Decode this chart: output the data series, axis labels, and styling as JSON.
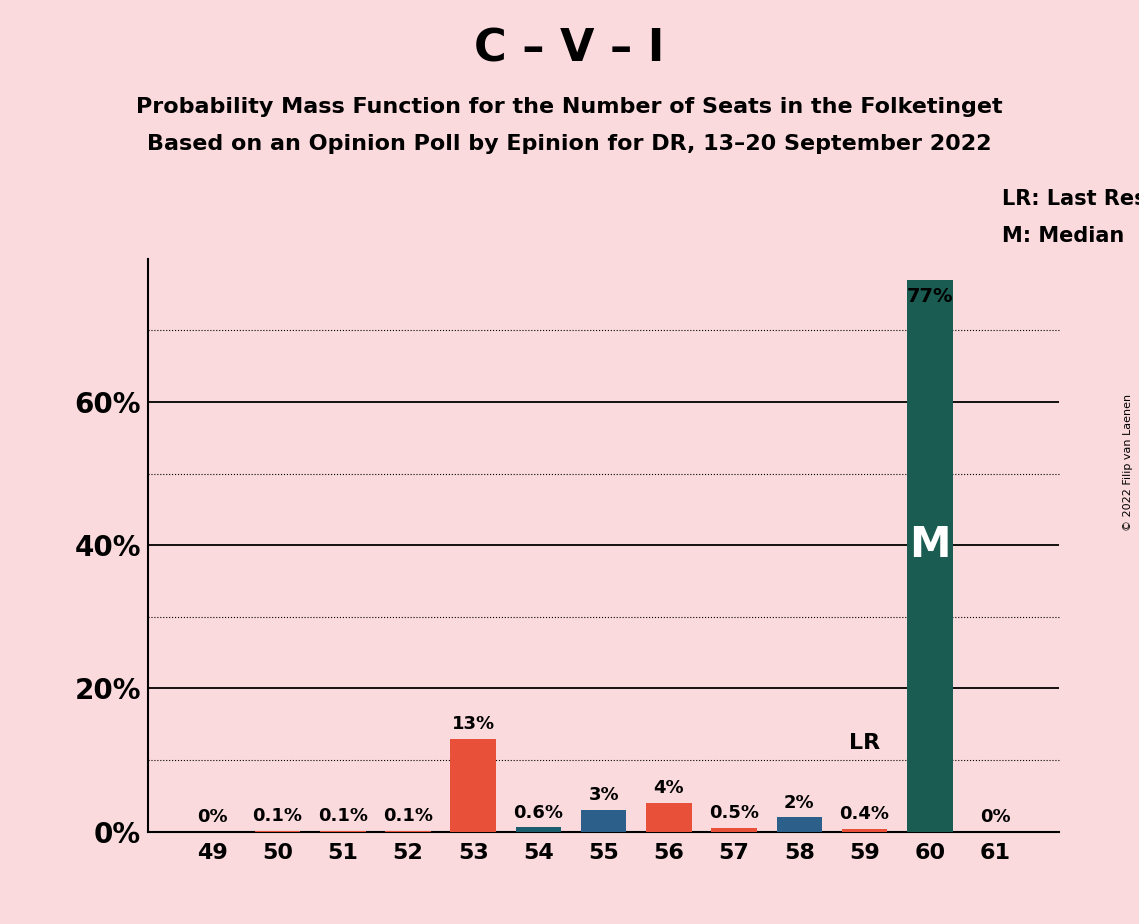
{
  "title": "C – V – I",
  "subtitle1": "Probability Mass Function for the Number of Seats in the Folketinget",
  "subtitle2": "Based on an Opinion Poll by Epinion for DR, 13–20 September 2022",
  "copyright": "© 2022 Filip van Laenen",
  "categories": [
    49,
    50,
    51,
    52,
    53,
    54,
    55,
    56,
    57,
    58,
    59,
    60,
    61
  ],
  "values": [
    0.0,
    0.1,
    0.1,
    0.1,
    13.0,
    0.6,
    3.0,
    4.0,
    0.5,
    2.0,
    0.4,
    77.0,
    0.0
  ],
  "labels": [
    "0%",
    "0.1%",
    "0.1%",
    "0.1%",
    "13%",
    "0.6%",
    "3%",
    "4%",
    "0.5%",
    "2%",
    "0.4%",
    "",
    "0%"
  ],
  "bar_colors": [
    "#E8503A",
    "#E8503A",
    "#E8503A",
    "#E8503A",
    "#E8503A",
    "#1B5E6E",
    "#2C5F8A",
    "#E8503A",
    "#E8503A",
    "#2C5F8A",
    "#E8503A",
    "#1A5C52",
    "#E8503A"
  ],
  "median_seat": 60,
  "last_result_seat": 60,
  "last_result_value": 77.0,
  "median_label": "M",
  "lr_label": "LR",
  "lr_legend": "LR: Last Result",
  "m_legend": "M: Median",
  "background_color": "#FADADD",
  "bar_dark_teal": "#1A5C52",
  "ylim": [
    0,
    80
  ],
  "solid_yticks": [
    20,
    40,
    60
  ],
  "dotted_yticks": [
    10,
    30,
    50,
    70
  ],
  "title_fontsize": 32,
  "subtitle_fontsize": 16,
  "label_fontsize": 13,
  "tick_fontsize": 16
}
